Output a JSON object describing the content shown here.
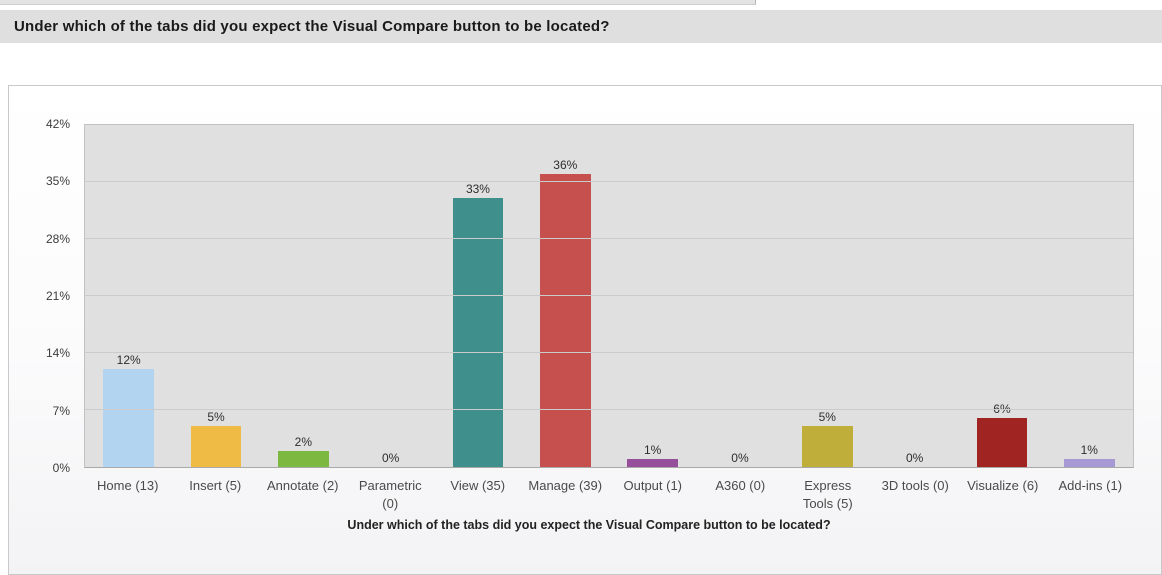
{
  "header": {
    "question": "Under which of the tabs did you expect the Visual Compare button to be located?"
  },
  "chart_data": {
    "type": "bar",
    "title": "",
    "xlabel": "Under which of the tabs did you expect the Visual Compare button to be located?",
    "ylabel": "",
    "ylim": [
      0,
      42
    ],
    "yticks": [
      0,
      7,
      14,
      21,
      28,
      35,
      42
    ],
    "ytick_suffix": "%",
    "grid": true,
    "legend": "none",
    "categories": [
      "Home (13)",
      "Insert (5)",
      "Annotate (2)",
      "Parametric\n(0)",
      "View (35)",
      "Manage (39)",
      "Output (1)",
      "A360 (0)",
      "Express\nTools (5)",
      "3D tools (0)",
      "Visualize (6)",
      "Add-ins (1)"
    ],
    "values": [
      12,
      5,
      2,
      0,
      33,
      36,
      1,
      0,
      5,
      0,
      6,
      1
    ],
    "value_labels": [
      "12%",
      "5%",
      "2%",
      "0%",
      "33%",
      "36%",
      "1%",
      "0%",
      "5%",
      "0%",
      "6%",
      "1%"
    ],
    "bar_colors": [
      "#b3d4f1",
      "#f0bb45",
      "#7db840",
      "#999999",
      "#3f8f8c",
      "#c5504d",
      "#964f9b",
      "#999999",
      "#bfae39",
      "#999999",
      "#a02422",
      "#a79ad4"
    ],
    "plot_background": "#e0e0e0",
    "gridline_color": "#cbcbcb"
  }
}
